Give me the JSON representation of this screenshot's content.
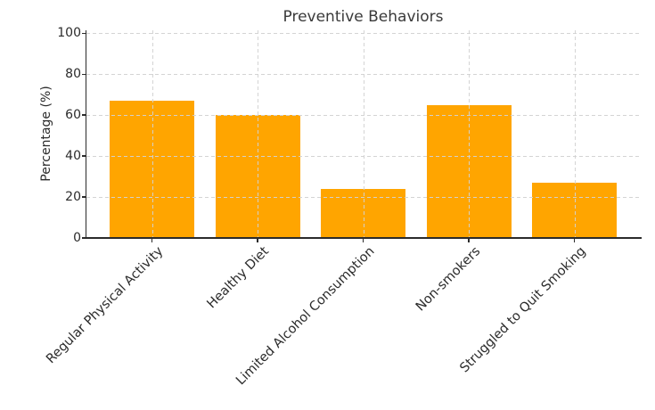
{
  "chart_data": {
    "type": "bar",
    "title": "Preventive Behaviors",
    "xlabel": "",
    "ylabel": "Percentage (%)",
    "categories": [
      "Regular Physical Activity",
      "Healthy Diet",
      "Limited Alcohol Consumption",
      "Non-smokers",
      "Struggled to Quit Smoking"
    ],
    "values": [
      67,
      60,
      24,
      65,
      27
    ],
    "ylim": [
      0,
      100
    ],
    "yticks": [
      0,
      20,
      40,
      60,
      80,
      100
    ],
    "bar_color": "#FFA500",
    "grid": "on",
    "grid_style": "dashed",
    "grid_over_bars": true,
    "x_tick_rotation_deg": 45,
    "legend": "none"
  }
}
